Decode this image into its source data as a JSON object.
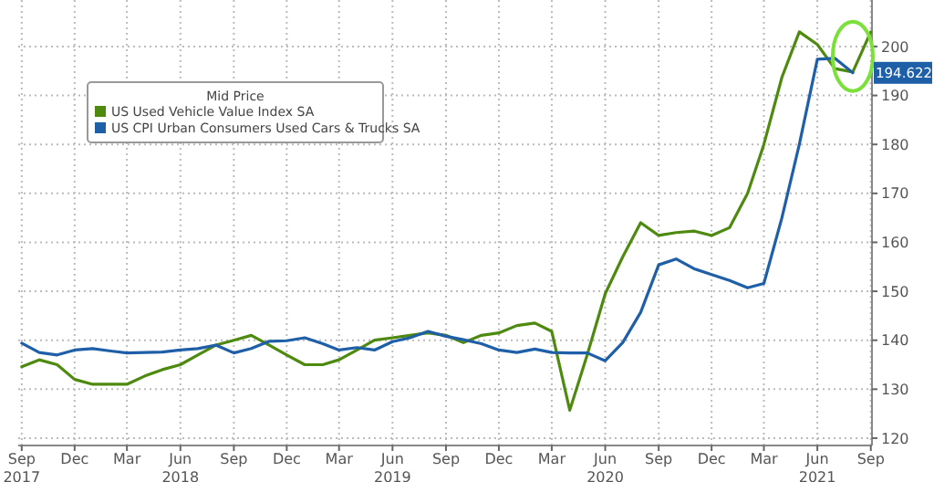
{
  "chart_data": {
    "type": "line",
    "x": [
      "2017-09",
      "2017-10",
      "2017-11",
      "2017-12",
      "2018-01",
      "2018-02",
      "2018-03",
      "2018-04",
      "2018-05",
      "2018-06",
      "2018-07",
      "2018-08",
      "2018-09",
      "2018-10",
      "2018-11",
      "2018-12",
      "2019-01",
      "2019-02",
      "2019-03",
      "2019-04",
      "2019-05",
      "2019-06",
      "2019-07",
      "2019-08",
      "2019-09",
      "2019-10",
      "2019-11",
      "2019-12",
      "2020-01",
      "2020-02",
      "2020-03",
      "2020-04",
      "2020-05",
      "2020-06",
      "2020-07",
      "2020-08",
      "2020-09",
      "2020-10",
      "2020-11",
      "2020-12",
      "2021-01",
      "2021-02",
      "2021-03",
      "2021-04",
      "2021-05",
      "2021-06",
      "2021-07",
      "2021-08",
      "2021-09"
    ],
    "series": [
      {
        "name": "US Used Vehicle Value Index SA",
        "color": "#4f8a10",
        "values": [
          134.6,
          136,
          135,
          132,
          131,
          131,
          131,
          132.7,
          134,
          135,
          137,
          139,
          140,
          141,
          139,
          137,
          135,
          135,
          136,
          138,
          140,
          140.5,
          141,
          141.5,
          141,
          139.5,
          141,
          141.5,
          143,
          143.5,
          141.8,
          125.7,
          137,
          149.5,
          157,
          164,
          161.4,
          162,
          162.3,
          161.4,
          163,
          170,
          180,
          193.7,
          203,
          200.4,
          195.5,
          194.8,
          203
        ]
      },
      {
        "name": "US CPI Urban Consumers Used Cars & Trucks SA",
        "color": "#1f5fa8",
        "values": [
          139.4,
          137.5,
          137,
          138,
          138.3,
          137.8,
          137.4,
          137.5,
          137.6,
          138,
          138.3,
          139,
          137.4,
          138.3,
          139.8,
          139.9,
          140.5,
          139.3,
          138,
          138.5,
          138,
          139.7,
          140.5,
          141.8,
          140.8,
          140.1,
          139.3,
          138,
          137.5,
          138.2,
          137.5,
          137.4,
          137.4,
          135.8,
          139.5,
          145.7,
          155.4,
          156.6,
          154.6,
          153.4,
          152.2,
          150.7,
          151.6,
          165,
          180,
          197.4,
          197.6,
          194.622,
          null
        ],
        "value_labels": [
          null,
          null,
          null,
          null,
          null,
          null,
          null,
          null,
          null,
          null,
          null,
          null,
          null,
          null,
          null,
          null,
          null,
          null,
          null,
          null,
          null,
          null,
          null,
          null,
          null,
          null,
          null,
          null,
          null,
          null,
          null,
          null,
          null,
          null,
          null,
          null,
          null,
          null,
          null,
          null,
          null,
          null,
          null,
          null,
          null,
          null,
          null,
          "194.622",
          null
        ]
      }
    ],
    "legend_title": "Mid Price",
    "legend": "top left",
    "xlim": [
      "2017-08-26",
      "2021-09-03"
    ],
    "xticks": [
      {
        "value": "2017-09",
        "label": "Sep\n2017"
      },
      {
        "value": "2017-12",
        "label": "Dec"
      },
      {
        "value": "2018-03",
        "label": "Mar"
      },
      {
        "value": "2018-06",
        "label": "Jun\n2018"
      },
      {
        "value": "2018-09",
        "label": "Sep"
      },
      {
        "value": "2018-12",
        "label": "Dec"
      },
      {
        "value": "2019-03",
        "label": "Mar"
      },
      {
        "value": "2019-06",
        "label": "Jun\n2019"
      },
      {
        "value": "2019-09",
        "label": "Sep"
      },
      {
        "value": "2019-12",
        "label": "Dec"
      },
      {
        "value": "2020-03",
        "label": "Mar"
      },
      {
        "value": "2020-06",
        "label": "Jun\n2020"
      },
      {
        "value": "2020-09",
        "label": "Sep"
      },
      {
        "value": "2020-12",
        "label": "Dec"
      },
      {
        "value": "2021-03",
        "label": "Mar"
      },
      {
        "value": "2021-06",
        "label": "Jun\n2021"
      },
      {
        "value": "2021-09",
        "label": "Sep"
      }
    ],
    "ylim": [
      118.5,
      209.5
    ],
    "yticks": [
      120,
      130,
      140,
      150,
      160,
      170,
      180,
      190,
      200
    ],
    "grid": true
  }
}
